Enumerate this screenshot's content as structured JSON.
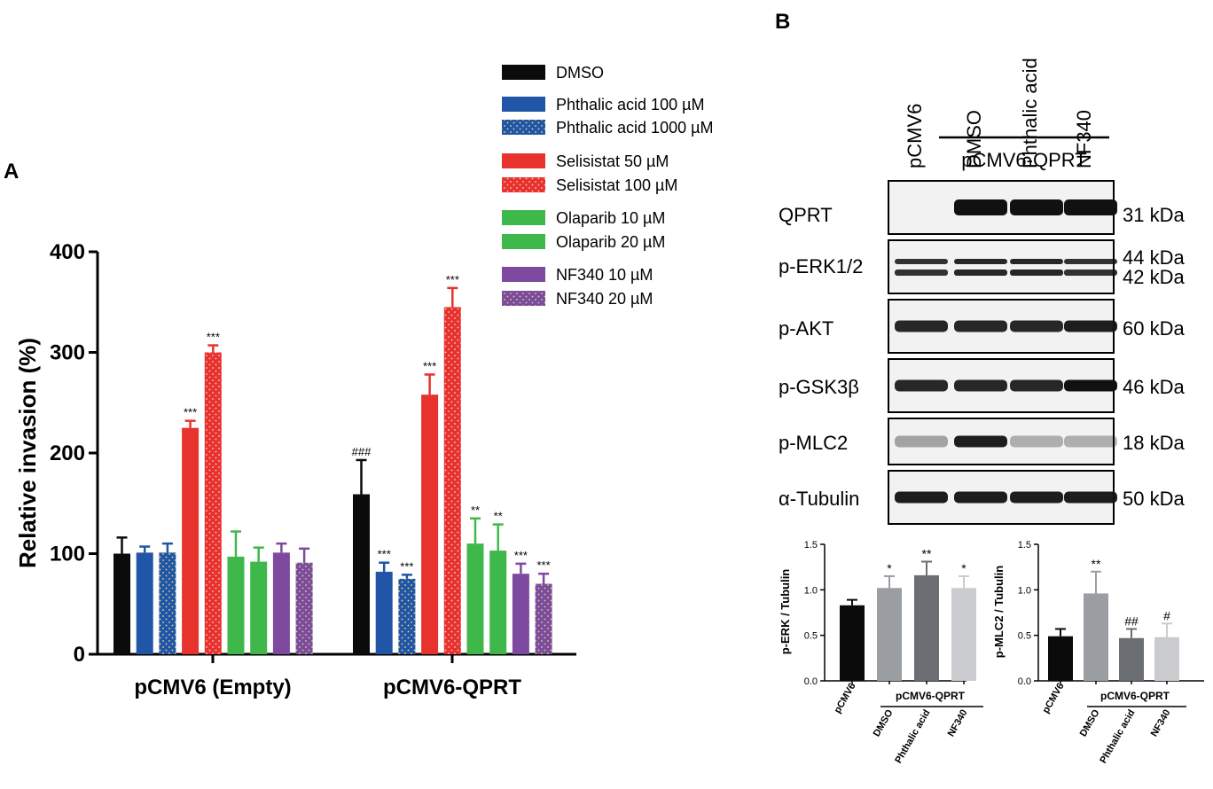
{
  "panels": {
    "A": "A",
    "B": "B"
  },
  "colors": {
    "DMSO": "#0b0b0b",
    "Phthalic acid": "#2155a8",
    "Selisistat": "#e8322e",
    "Olaparib": "#3fb84b",
    "NF340": "#7e4aa0",
    "sub_pCMV6": "#0b0b0b",
    "sub_DMSO": "#9a9da2",
    "sub_Phthalic": "#6b6e72",
    "sub_NF340": "#c9cbce"
  },
  "chart_data": [
    {
      "type": "bar",
      "panel": "A",
      "ylabel": "Relative invasion (%)",
      "ylim": [
        0,
        400
      ],
      "yticks": [
        "0",
        "100",
        "200",
        "300",
        "400"
      ],
      "categories": [
        "pCMV6 (Empty)",
        "pCMV6-QPRT"
      ],
      "series": [
        {
          "name": "DMSO",
          "color": "#0b0b0b",
          "pattern": "solid",
          "values": [
            100,
            159
          ],
          "errors": [
            16,
            34
          ],
          "annotations": [
            "",
            "###"
          ]
        },
        {
          "name": "Phthalic acid 100 µM",
          "color": "#2155a8",
          "pattern": "solid",
          "values": [
            101,
            82
          ],
          "errors": [
            6,
            9
          ],
          "annotations": [
            "",
            "***"
          ]
        },
        {
          "name": "Phthalic acid 1000 µM",
          "color": "#2155a8",
          "pattern": "dotted",
          "values": [
            101,
            75
          ],
          "errors": [
            9,
            4
          ],
          "annotations": [
            "",
            "***"
          ]
        },
        {
          "name": "Selisistat 50 µM",
          "color": "#e8322e",
          "pattern": "solid",
          "values": [
            225,
            258
          ],
          "errors": [
            7,
            20
          ],
          "annotations": [
            "***",
            "***"
          ]
        },
        {
          "name": "Selisistat 100 µM",
          "color": "#e8322e",
          "pattern": "dotted",
          "values": [
            300,
            345
          ],
          "errors": [
            7,
            19
          ],
          "annotations": [
            "***",
            "***"
          ]
        },
        {
          "name": "Olaparib 10 µM",
          "color": "#3fb84b",
          "pattern": "solid",
          "values": [
            97,
            110
          ],
          "errors": [
            25,
            25
          ],
          "annotations": [
            "",
            "**"
          ]
        },
        {
          "name": "Olaparib 20 µM",
          "color": "#3fb84b",
          "pattern": "solid",
          "values": [
            92,
            103
          ],
          "errors": [
            14,
            26
          ],
          "annotations": [
            "",
            "**"
          ]
        },
        {
          "name": "NF340 10 µM",
          "color": "#7e4aa0",
          "pattern": "solid",
          "values": [
            101,
            80
          ],
          "errors": [
            9,
            10
          ],
          "annotations": [
            "",
            "***"
          ]
        },
        {
          "name": "NF340 20 µM",
          "color": "#7e4aa0",
          "pattern": "dotted",
          "values": [
            91,
            70
          ],
          "errors": [
            14,
            10
          ],
          "annotations": [
            "",
            "***"
          ]
        }
      ]
    },
    {
      "type": "bar",
      "panel": "B-left",
      "ylabel": "p-ERK / Tubulin",
      "ylim": [
        0,
        1.5
      ],
      "yticks": [
        "0.0",
        "0.5",
        "1.0",
        "1.5"
      ],
      "categories": [
        "pCMV6",
        "DMSO",
        "Phthalic acid",
        "NF340"
      ],
      "group_label": "pCMV6-QPRT",
      "values": [
        0.83,
        1.02,
        1.16,
        1.02
      ],
      "errors": [
        0.06,
        0.13,
        0.15,
        0.13
      ],
      "annotations": [
        "",
        "*",
        "**",
        "*"
      ],
      "colors": [
        "#0b0b0b",
        "#9a9da2",
        "#6b6e72",
        "#c9cbce"
      ]
    },
    {
      "type": "bar",
      "panel": "B-right",
      "ylabel": "p-MLC2 / Tubulin",
      "ylim": [
        0,
        1.5
      ],
      "yticks": [
        "0.0",
        "0.5",
        "1.0",
        "1.5"
      ],
      "categories": [
        "pCMV6",
        "DMSO",
        "Phthalic acid",
        "NF340"
      ],
      "group_label": "pCMV6-QPRT",
      "values": [
        0.49,
        0.96,
        0.47,
        0.48
      ],
      "errors": [
        0.08,
        0.24,
        0.1,
        0.15
      ],
      "annotations": [
        "",
        "**",
        "##",
        "#"
      ],
      "colors": [
        "#0b0b0b",
        "#9a9da2",
        "#6b6e72",
        "#c9cbce"
      ]
    }
  ],
  "blot": {
    "lanes": [
      "pCMV6",
      "DMSO",
      "Phthalic acid",
      "NF340"
    ],
    "group_label": "pCMV6-QPRT",
    "rows": [
      {
        "label": "QPRT",
        "kda": [
          "31 kDa"
        ],
        "intensity": [
          0.0,
          1.0,
          1.0,
          1.0
        ],
        "bands": 1
      },
      {
        "label": "p-ERK1/2",
        "kda": [
          "44 kDa",
          "42 kDa"
        ],
        "intensity": [
          0.85,
          0.9,
          0.9,
          0.85
        ],
        "bands": 2
      },
      {
        "label": "p-AKT",
        "kda": [
          "60 kDa"
        ],
        "intensity": [
          0.9,
          0.9,
          0.9,
          0.95
        ],
        "bands": 1
      },
      {
        "label": "p-GSK3β",
        "kda": [
          "46 kDa"
        ],
        "intensity": [
          0.9,
          0.9,
          0.9,
          1.0
        ],
        "bands": 1
      },
      {
        "label": "p-MLC2",
        "kda": [
          "18 kDa"
        ],
        "intensity": [
          0.35,
          0.95,
          0.3,
          0.3
        ],
        "bands": 1
      },
      {
        "label": "α-Tubulin",
        "kda": [
          "50 kDa"
        ],
        "intensity": [
          0.95,
          0.95,
          0.95,
          0.95
        ],
        "bands": 1
      }
    ]
  }
}
